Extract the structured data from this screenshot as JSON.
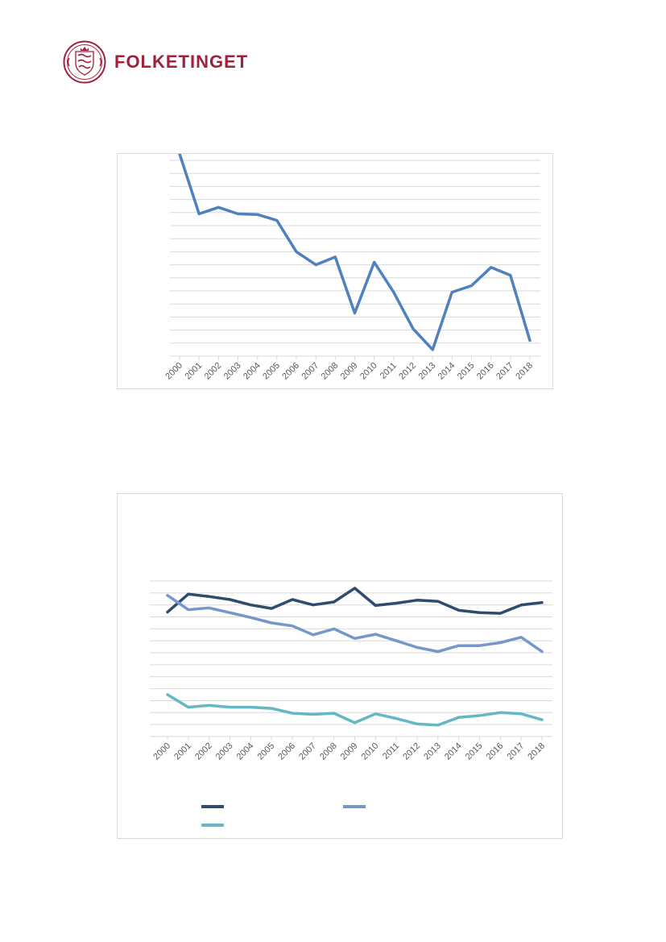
{
  "header": {
    "logo_text": "FOLKETINGET",
    "brand_color": "#a3203a",
    "seal_icon": "danish-coat-of-arms-seal"
  },
  "chart_data": [
    {
      "type": "line",
      "title": "",
      "xlabel": "",
      "ylabel": "",
      "grid": true,
      "y_tick_count": 15,
      "ylim": [
        0,
        15
      ],
      "categories": [
        "2000",
        "2001",
        "2002",
        "2003",
        "2004",
        "2005",
        "2006",
        "2007",
        "2008",
        "2009",
        "2010",
        "2011",
        "2012",
        "2013",
        "2014",
        "2015",
        "2016",
        "2017",
        "2018"
      ],
      "series": [
        {
          "color": "#4f81bd",
          "values": [
            15.5,
            10.9,
            11.4,
            10.9,
            10.85,
            10.4,
            8.0,
            7.0,
            7.6,
            3.3,
            7.2,
            4.9,
            2.1,
            0.5,
            4.9,
            5.4,
            6.8,
            6.2,
            1.2
          ]
        }
      ]
    },
    {
      "type": "line",
      "title": "",
      "xlabel": "",
      "ylabel": "",
      "grid": true,
      "ylim": [
        0,
        13
      ],
      "categories": [
        "2000",
        "2001",
        "2002",
        "2003",
        "2004",
        "2005",
        "2006",
        "2007",
        "2008",
        "2009",
        "2010",
        "2011",
        "2012",
        "2013",
        "2014",
        "2015",
        "2016",
        "2017",
        "2018"
      ],
      "legend": "bottom",
      "series": [
        {
          "color": "#2f4b6e",
          "values": [
            10.4,
            11.9,
            11.7,
            11.45,
            11.0,
            10.7,
            11.45,
            11.0,
            11.25,
            12.4,
            10.95,
            11.15,
            11.4,
            11.3,
            10.55,
            10.35,
            10.3,
            11.0,
            11.2
          ]
        },
        {
          "color": "#7597c9",
          "values": [
            11.8,
            10.6,
            10.75,
            10.35,
            9.95,
            9.5,
            9.25,
            8.5,
            9.0,
            8.2,
            8.55,
            8.0,
            7.45,
            7.1,
            7.6,
            7.6,
            7.85,
            8.3,
            7.1
          ]
        },
        {
          "color": "#64b8c4",
          "values": [
            3.5,
            2.45,
            2.6,
            2.45,
            2.45,
            2.35,
            1.95,
            1.85,
            1.95,
            1.15,
            1.9,
            1.5,
            1.05,
            0.95,
            1.6,
            1.75,
            2.0,
            1.9,
            1.4
          ]
        }
      ]
    }
  ]
}
